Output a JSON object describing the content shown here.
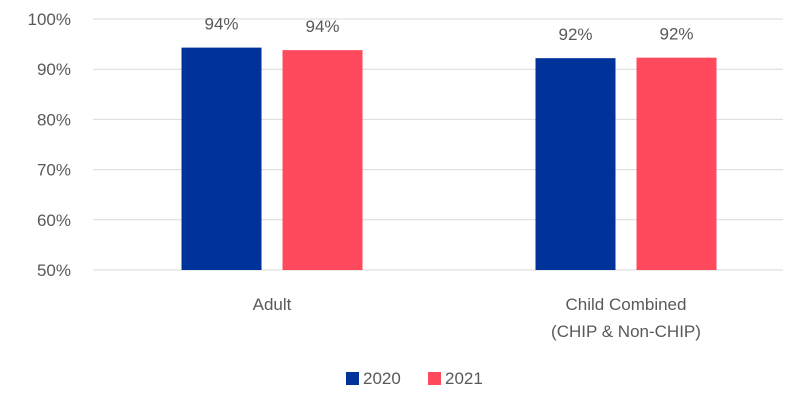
{
  "chart_data": {
    "type": "bar",
    "title": "",
    "xlabel": "",
    "ylabel": "",
    "categories": [
      [
        "Adult"
      ],
      [
        "Child Combined",
        "(CHIP & Non-CHIP)"
      ]
    ],
    "series": [
      {
        "name": "2020",
        "color": "#003399",
        "values": [
          94.3,
          92.2
        ],
        "labels": [
          "94%",
          "92%"
        ]
      },
      {
        "name": "2021",
        "color": "#ff4a5e",
        "values": [
          93.8,
          92.3
        ],
        "labels": [
          "94%",
          "92%"
        ]
      }
    ],
    "ylim": [
      50,
      100
    ],
    "yticks": [
      50,
      60,
      70,
      80,
      90,
      100
    ],
    "ytick_labels": [
      "50%",
      "60%",
      "70%",
      "80%",
      "90%",
      "100%"
    ],
    "grid": true,
    "legend_position": "bottom"
  }
}
